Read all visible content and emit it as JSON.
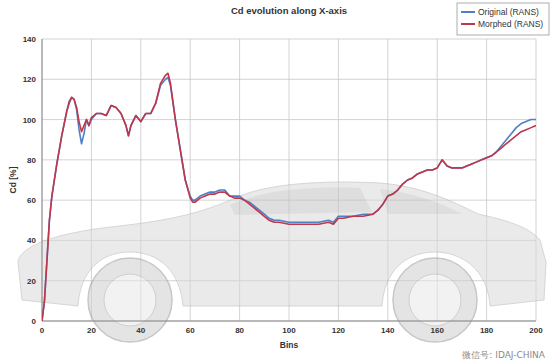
{
  "chart_data": {
    "type": "line",
    "title": "Cd evolution along X-axis",
    "x_label": "Bins",
    "y_label": "Cd [%]",
    "annotations": [
      "微信号: IDAJ-CHINA"
    ],
    "x": [
      0,
      1,
      2,
      3,
      4,
      5,
      6,
      7,
      8,
      9,
      10,
      11,
      12,
      13,
      14,
      15,
      16,
      17,
      18,
      19,
      20,
      22,
      24,
      26,
      28,
      30,
      32,
      34,
      35,
      36,
      38,
      40,
      42,
      44,
      46,
      48,
      50,
      51,
      52,
      54,
      56,
      58,
      60,
      61,
      62,
      64,
      66,
      68,
      70,
      72,
      74,
      76,
      78,
      80,
      82,
      84,
      86,
      88,
      90,
      92,
      94,
      96,
      100,
      104,
      108,
      112,
      116,
      118,
      120,
      122,
      126,
      130,
      134,
      136,
      138,
      140,
      142,
      144,
      146,
      148,
      150,
      152,
      154,
      156,
      158,
      160,
      162,
      164,
      166,
      168,
      170,
      172,
      174,
      176,
      178,
      180,
      182,
      184,
      186,
      188,
      190,
      192,
      194,
      196,
      198,
      200
    ],
    "series": [
      {
        "name": "Original (RANS)",
        "color": "#4f7fc4",
        "values": [
          0,
          10,
          30,
          50,
          62,
          70,
          78,
          85,
          92,
          98,
          104,
          108,
          111,
          110,
          105,
          95,
          88,
          93,
          100,
          97,
          100,
          103,
          103,
          102,
          107,
          106,
          103,
          97,
          92,
          97,
          102,
          99,
          103,
          103,
          108,
          117,
          120,
          121,
          117,
          100,
          85,
          70,
          62,
          60,
          60,
          62,
          63,
          64,
          64,
          65,
          65,
          62,
          62,
          62,
          60,
          59,
          57,
          55,
          53,
          51,
          50,
          50,
          49,
          49,
          49,
          49,
          50,
          49,
          52,
          52,
          52,
          53,
          53,
          55,
          58,
          62,
          63,
          65,
          68,
          70,
          71,
          73,
          74,
          75,
          75,
          76,
          80,
          77,
          76,
          76,
          76,
          77,
          78,
          79,
          80,
          81,
          82,
          84,
          87,
          90,
          93,
          96,
          98,
          99,
          100,
          100
        ]
      },
      {
        "name": "Morphed (RANS)",
        "color": "#c0364a",
        "values": [
          0,
          10,
          30,
          50,
          62,
          70,
          78,
          85,
          92,
          98,
          104,
          109,
          111,
          110,
          106,
          99,
          94,
          97,
          100,
          97,
          101,
          103,
          103,
          102,
          107,
          106,
          103,
          97,
          92,
          97,
          102,
          99,
          103,
          103,
          108,
          118,
          122,
          123,
          118,
          100,
          85,
          70,
          61,
          59,
          59,
          61,
          62,
          63,
          63,
          64,
          64,
          62,
          61,
          61,
          60,
          58,
          56,
          54,
          52,
          50,
          49,
          49,
          48,
          48,
          48,
          48,
          49,
          48,
          51,
          51,
          52,
          52,
          53,
          55,
          58,
          62,
          63,
          65,
          68,
          70,
          71,
          73,
          74,
          75,
          75,
          76,
          80,
          77,
          76,
          76,
          76,
          77,
          78,
          79,
          80,
          81,
          82,
          84,
          86,
          88,
          90,
          92,
          94,
          95,
          96,
          97
        ]
      }
    ],
    "xlim": [
      0,
      200
    ],
    "ylim": [
      0,
      140
    ],
    "xticks": [
      0,
      20,
      40,
      60,
      80,
      100,
      120,
      140,
      160,
      180,
      200
    ],
    "yticks": [
      0,
      20,
      40,
      60,
      80,
      100,
      120,
      140
    ],
    "grid": true,
    "legend": "top-right"
  }
}
